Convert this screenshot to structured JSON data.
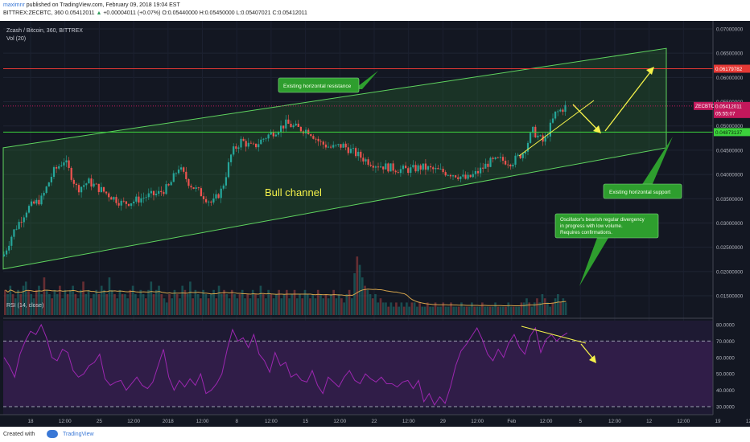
{
  "header": {
    "user": "maximnr",
    "published": " published on TradingView.com, February 09, 2018 19:04 EST",
    "ohlc_prefix": "BITTREX:ZECBTC, 360",
    "last": "0.05412011",
    "change": "+0.00004011 (+0.07%)",
    "o": "O:0.05440000",
    "h": "H:0.05450000",
    "l": "L:0.05407021",
    "c": "C:0.05412011"
  },
  "chart_labels": {
    "symbol": "Zcash / Bitcoin, 360, BITTREX",
    "vol": "Vol (20)",
    "rsi": "RSI (14, close)"
  },
  "annotations": {
    "resistance": "Existing horizontal resistance",
    "support": "Existing horizontal support",
    "channel": "Bull channel",
    "osc1": "Oscillator's bearish regular divergency",
    "osc2": "in progress with low volume.",
    "osc3": "Requires confirmations."
  },
  "price_tags": {
    "resistance": "0.06179782",
    "symbol": "ZECBTC",
    "last": "0.05412011",
    "countdown": "05:55:07",
    "support": "0.04873137"
  },
  "footer": {
    "created": "Created with",
    "brand": "TradingView"
  },
  "colors": {
    "background": "#131722",
    "up": "#26a69a",
    "down": "#ef5350",
    "resistance": "#e53935",
    "support": "#3cd23c",
    "channel": "#2e7d32",
    "arrow": "#f5f24a",
    "rsi": "#9c27b0"
  },
  "chart_data": [
    {
      "type": "candlestick",
      "title": "Zcash / Bitcoin, 360, BITTREX",
      "x": [
        "18",
        "12:00",
        "25",
        "12:00",
        "2018",
        "12:00",
        "8",
        "12:00",
        "15",
        "12:00",
        "22",
        "12:00",
        "29",
        "12:00",
        "Feb",
        "12:00",
        "5",
        "12:00",
        "12",
        "12:00",
        "19",
        "12:00"
      ],
      "y_ticks": [
        "0.07000000",
        "0.06500000",
        "0.06000000",
        "0.05500000",
        "0.05000000",
        "0.04500000",
        "0.04000000",
        "0.03500000",
        "0.03000000",
        "0.02500000",
        "0.02000000",
        "0.01500000"
      ],
      "ylim": [
        0.015,
        0.0715
      ],
      "close_path": [
        [
          0,
          0.0215
        ],
        [
          16,
          0.028
        ],
        [
          34,
          0.033
        ],
        [
          52,
          0.035
        ],
        [
          66,
          0.0405
        ],
        [
          80,
          0.043
        ],
        [
          96,
          0.037
        ],
        [
          110,
          0.0385
        ],
        [
          124,
          0.037
        ],
        [
          138,
          0.0355
        ],
        [
          152,
          0.034
        ],
        [
          166,
          0.0345
        ],
        [
          182,
          0.0355
        ],
        [
          196,
          0.036
        ],
        [
          210,
          0.0375
        ],
        [
          222,
          0.0415
        ],
        [
          236,
          0.038
        ],
        [
          250,
          0.036
        ],
        [
          264,
          0.034
        ],
        [
          276,
          0.037
        ],
        [
          288,
          0.0445
        ],
        [
          300,
          0.047
        ],
        [
          314,
          0.0455
        ],
        [
          328,
          0.0475
        ],
        [
          342,
          0.049
        ],
        [
          356,
          0.0505
        ],
        [
          370,
          0.0495
        ],
        [
          384,
          0.049
        ],
        [
          398,
          0.0465
        ],
        [
          412,
          0.0455
        ],
        [
          426,
          0.046
        ],
        [
          440,
          0.0445
        ],
        [
          454,
          0.043
        ],
        [
          468,
          0.042
        ],
        [
          482,
          0.0415
        ],
        [
          496,
          0.041
        ],
        [
          510,
          0.041
        ],
        [
          524,
          0.0415
        ],
        [
          538,
          0.041
        ],
        [
          552,
          0.0405
        ],
        [
          566,
          0.04
        ],
        [
          580,
          0.039
        ],
        [
          594,
          0.0405
        ],
        [
          608,
          0.0425
        ],
        [
          622,
          0.043
        ],
        [
          636,
          0.0425
        ],
        [
          650,
          0.0445
        ],
        [
          662,
          0.049
        ],
        [
          676,
          0.0465
        ],
        [
          690,
          0.0525
        ],
        [
          704,
          0.0541
        ]
      ],
      "horizontal_levels": [
        {
          "name": "resistance",
          "value": 0.06179782
        },
        {
          "name": "support",
          "value": 0.04873137
        }
      ],
      "last_value": 0.05412011
    },
    {
      "type": "bar",
      "title": "Vol (20)",
      "values": [
        6,
        5,
        7,
        5,
        4,
        6,
        5,
        7,
        8,
        6,
        5,
        4,
        6,
        7,
        5,
        9,
        6,
        5,
        4,
        6,
        5,
        7,
        4,
        6,
        5,
        6,
        7,
        5,
        4,
        6,
        8,
        5,
        6,
        4,
        5,
        6,
        5,
        7,
        6,
        5,
        9,
        6,
        5,
        4,
        6,
        5,
        5,
        4,
        6,
        7,
        5,
        4,
        6,
        5,
        4,
        6,
        8,
        5,
        6,
        7,
        5,
        4,
        3,
        5,
        4,
        6,
        5,
        4,
        7,
        6,
        5,
        8,
        4,
        6,
        5,
        4,
        6,
        5,
        4,
        5,
        6,
        4,
        7,
        5,
        6,
        5,
        4,
        6,
        5,
        4,
        5,
        6,
        4,
        5,
        4,
        6,
        5,
        4,
        7,
        5,
        4,
        6,
        5,
        4,
        5,
        6,
        4,
        5,
        6,
        4,
        5,
        6,
        4,
        5,
        4,
        6,
        5,
        4,
        5,
        4,
        6,
        5,
        4,
        5,
        4,
        5,
        6,
        4,
        5,
        4,
        3,
        5,
        6,
        4,
        10,
        14,
        12,
        9,
        7,
        6,
        5,
        4,
        5,
        3,
        4,
        3,
        3,
        2,
        3,
        2,
        3,
        2,
        3,
        2,
        3,
        2,
        3,
        3,
        2,
        3,
        2,
        2,
        3,
        2,
        2,
        3,
        2,
        2,
        3,
        2,
        2,
        3,
        2,
        2,
        2,
        3,
        2,
        2,
        2,
        3,
        2,
        2,
        2,
        3,
        2,
        2,
        2,
        2,
        3,
        2,
        2,
        2,
        2,
        3,
        2,
        2,
        2,
        2,
        3,
        3,
        4,
        3,
        2,
        3,
        4,
        3,
        5,
        4,
        3,
        2,
        3,
        4,
        5,
        3,
        4,
        3
      ]
    },
    {
      "type": "line",
      "title": "RSI (14, close)",
      "y_ticks": [
        "80.0000",
        "70.0000",
        "60.0000",
        "50.0000",
        "40.0000",
        "30.0000"
      ],
      "ylim": [
        27,
        81
      ],
      "bands": [
        30,
        70
      ],
      "values": [
        60,
        55,
        48,
        62,
        70,
        76,
        74,
        80,
        72,
        60,
        58,
        65,
        63,
        52,
        48,
        50,
        55,
        57,
        62,
        47,
        43,
        45,
        46,
        40,
        44,
        48,
        43,
        41,
        45,
        55,
        65,
        48,
        40,
        46,
        42,
        47,
        43,
        50,
        38,
        40,
        44,
        50,
        65,
        77,
        70,
        72,
        66,
        74,
        62,
        58,
        51,
        63,
        55,
        57,
        48,
        50,
        46,
        45,
        52,
        43,
        38,
        48,
        45,
        42,
        48,
        52,
        46,
        44,
        50,
        47,
        45,
        48,
        44,
        44,
        42,
        45,
        46,
        41,
        46,
        33,
        38,
        31,
        36,
        32,
        42,
        55,
        64,
        68,
        73,
        78,
        71,
        62,
        58,
        65,
        60,
        69,
        74,
        66,
        62,
        73,
        78,
        63,
        71,
        74,
        70,
        73,
        75
      ]
    }
  ]
}
